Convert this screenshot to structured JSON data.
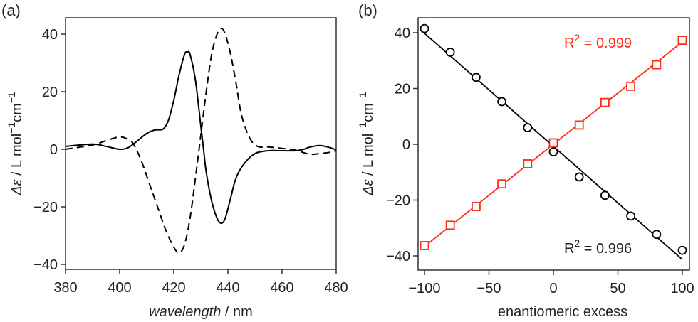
{
  "chart_data": [
    {
      "panel_label": "(a)",
      "type": "line",
      "xlabel_italic": "wavelength",
      "xlabel_rest": " / nm",
      "ylabel_parts": [
        "Δε",
        " / L  mol",
        "−1",
        "cm",
        "−1"
      ],
      "xlim": [
        380,
        480
      ],
      "ylim": [
        -43,
        46
      ],
      "xticks": [
        380,
        400,
        420,
        440,
        460,
        480
      ],
      "yticks": [
        -40,
        -20,
        0,
        20,
        40
      ],
      "ytick_labels": [
        "−40",
        "−20",
        "0",
        "20",
        "40"
      ],
      "grid": false,
      "series": [
        {
          "style": "solid",
          "color": "#000000",
          "x": [
            380,
            390,
            395,
            400,
            403,
            406,
            410,
            413,
            416,
            418,
            420,
            422,
            424,
            425,
            426,
            428,
            430,
            431,
            432,
            434,
            436,
            437.5,
            439,
            441,
            443,
            446,
            450,
            455,
            460,
            465,
            468,
            470,
            474,
            478,
            480
          ],
          "y": [
            1,
            1.8,
            1,
            0,
            0.5,
            2.5,
            5.5,
            6.7,
            7,
            10,
            17,
            26,
            33,
            33.7,
            33,
            24,
            8,
            0,
            -8,
            -18,
            -24,
            -25.7,
            -24,
            -17,
            -10,
            -5,
            -1.5,
            -0.5,
            -0.5,
            -0.5,
            0,
            0.7,
            1.3,
            0.5,
            -0.3
          ]
        },
        {
          "style": "dashed",
          "color": "#000000",
          "x": [
            380,
            390,
            395,
            400,
            403,
            405,
            408,
            411,
            414,
            417,
            420,
            422,
            424,
            426,
            428,
            430,
            432,
            434,
            436,
            437.5,
            439,
            441,
            443,
            445,
            448,
            451,
            455,
            460,
            465,
            470,
            474,
            478,
            480
          ],
          "y": [
            0,
            1.5,
            3,
            4.3,
            3.5,
            2,
            -4,
            -12,
            -20,
            -28,
            -34,
            -36,
            -33,
            -24,
            -10,
            5,
            20,
            33,
            40,
            42,
            40,
            33,
            23,
            12,
            4,
            1,
            0.8,
            0.3,
            -0.3,
            -1.7,
            -1.5,
            -1,
            -0.5
          ]
        }
      ]
    },
    {
      "panel_label": "(b)",
      "type": "scatter",
      "xlabel": "enantiomeric excess",
      "ylabel_parts": [
        "Δε",
        " / L  mol",
        "−1",
        "cm",
        "−1"
      ],
      "xlim": [
        -105,
        105
      ],
      "ylim": [
        -45,
        46
      ],
      "xticks": [
        -100,
        -50,
        0,
        50,
        100
      ],
      "xtick_labels": [
        "−100",
        "−50",
        "0",
        "50",
        "100"
      ],
      "yticks": [
        -40,
        -20,
        0,
        20,
        40
      ],
      "ytick_labels": [
        "−40",
        "−20",
        "0",
        "20",
        "40"
      ],
      "grid": false,
      "series": [
        {
          "marker": "circle",
          "color": "#000000",
          "x": [
            -100,
            -80,
            -60,
            -40,
            -20,
            0,
            20,
            40,
            60,
            80,
            100
          ],
          "y": [
            41.5,
            33,
            24,
            15.3,
            6,
            -2.7,
            -11.7,
            -18.3,
            -25.7,
            -32.3,
            -38
          ],
          "fit": {
            "x": [
              -100,
              100
            ],
            "y": [
              39.8,
              -41.3
            ]
          },
          "annotation": {
            "r": "R",
            "sup": "2",
            "rest": " = 0.996"
          }
        },
        {
          "marker": "square",
          "color": "#ff2a10",
          "x": [
            -100,
            -80,
            -60,
            -40,
            -20,
            0,
            20,
            40,
            60,
            80,
            100
          ],
          "y": [
            -36.3,
            -29,
            -22.3,
            -14.2,
            -7,
            0.5,
            6.9,
            15,
            20.8,
            28.5,
            37.3
          ],
          "fit": {
            "x": [
              -100,
              100
            ],
            "y": [
              -36.6,
              36.7
            ]
          },
          "annotation": {
            "r": "R",
            "sup": "2",
            "rest": " = 0.999"
          }
        }
      ]
    }
  ]
}
